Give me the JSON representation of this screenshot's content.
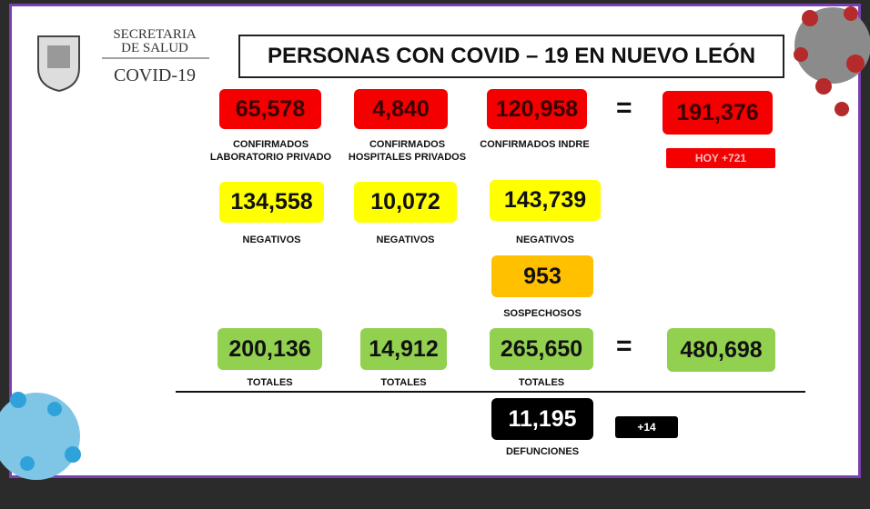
{
  "header": {
    "org_line1": "SECRETARIA",
    "org_line2": "DE SALUD",
    "program": "COVID-19",
    "title": "PERSONAS CON COVID – 19 EN NUEVO LEÓN"
  },
  "confirmed": [
    {
      "value": "65,578",
      "label_lines": [
        "CONFIRMADOS",
        "LABORATORIO PRIVADO"
      ]
    },
    {
      "value": "4,840",
      "label_lines": [
        "CONFIRMADOS",
        "HOSPITALES PRIVADOS"
      ]
    },
    {
      "value": "120,958",
      "label_lines": [
        "CONFIRMADOS INDRE"
      ]
    }
  ],
  "confirmed_total": {
    "equals": "=",
    "value": "191,376",
    "today": "HOY +721"
  },
  "negatives": [
    {
      "value": "134,558",
      "label": "NEGATIVOS"
    },
    {
      "value": "10,072",
      "label": "NEGATIVOS"
    },
    {
      "value": "143,739",
      "label": "NEGATIVOS"
    }
  ],
  "suspected": {
    "value": "953",
    "label": "SOSPECHOSOS"
  },
  "totals": [
    {
      "value": "200,136",
      "label": "TOTALES"
    },
    {
      "value": "14,912",
      "label": "TOTALES"
    },
    {
      "value": "265,650",
      "label": "TOTALES"
    }
  ],
  "grand_total": {
    "equals": "=",
    "value": "480,698"
  },
  "deaths": {
    "value": "11,195",
    "label": "DEFUNCIONES",
    "today": "+14"
  }
}
